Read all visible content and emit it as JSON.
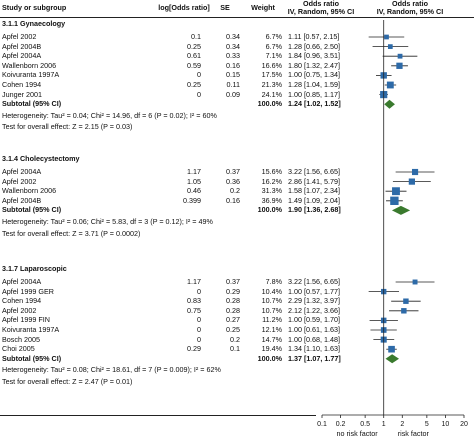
{
  "header": {
    "study": "Study or subgroup",
    "logor": "log[Odds ratio]",
    "se": "SE",
    "weight": "Weight",
    "or_title": "Odds ratio",
    "or_sub": "IV, Random, 95% CI",
    "or_title2": "Odds ratio",
    "or_sub2": "IV, Random, 95% CI"
  },
  "colors": {
    "square": "#2d6aa8",
    "diamond": "#3a7a2e",
    "line": "#222222"
  },
  "chart_data": {
    "type": "forest",
    "x_scale": "log",
    "xlim": [
      0.1,
      20
    ],
    "ticks": [
      "0.1",
      "0.2",
      "0.5",
      "1",
      "2",
      "5",
      "10",
      "20"
    ],
    "tick_values": [
      0.1,
      0.2,
      0.5,
      1,
      2,
      5,
      10,
      20
    ],
    "footer_left": "no risk factor",
    "footer_right": "risk factor",
    "groups": [
      {
        "title": "3.1.1 Gynaecology",
        "studies": [
          {
            "name": "Apfel 2002",
            "logor": "0.1",
            "se": "0.34",
            "weight": "6.7%",
            "ci_text": "1.11 [0.57, 2.15]",
            "or": 1.11,
            "lo": 0.57,
            "hi": 2.15,
            "w": 6.7
          },
          {
            "name": "Apfel 2004B",
            "logor": "0.25",
            "se": "0.34",
            "weight": "6.7%",
            "ci_text": "1.28 [0.66, 2.50]",
            "or": 1.28,
            "lo": 0.66,
            "hi": 2.5,
            "w": 6.7
          },
          {
            "name": "Apfel 2004A",
            "logor": "0.61",
            "se": "0.33",
            "weight": "7.1%",
            "ci_text": "1.84 [0.96, 3.51]",
            "or": 1.84,
            "lo": 0.96,
            "hi": 3.51,
            "w": 7.1
          },
          {
            "name": "Wallenborn 2006",
            "logor": "0.59",
            "se": "0.16",
            "weight": "16.6%",
            "ci_text": "1.80 [1.32, 2.47]",
            "or": 1.8,
            "lo": 1.32,
            "hi": 2.47,
            "w": 16.6
          },
          {
            "name": "Koivuranta 1997A",
            "logor": "0",
            "se": "0.15",
            "weight": "17.5%",
            "ci_text": "1.00 [0.75, 1.34]",
            "or": 1.0,
            "lo": 0.75,
            "hi": 1.34,
            "w": 17.5
          },
          {
            "name": "Cohen 1994",
            "logor": "0.25",
            "se": "0.11",
            "weight": "21.3%",
            "ci_text": "1.28 [1.04, 1.59]",
            "or": 1.28,
            "lo": 1.04,
            "hi": 1.59,
            "w": 21.3
          },
          {
            "name": "Junger 2001",
            "logor": "0",
            "se": "0.09",
            "weight": "24.1%",
            "ci_text": "1.00 [0.85, 1.17]",
            "or": 1.0,
            "lo": 0.85,
            "hi": 1.17,
            "w": 24.1
          }
        ],
        "subtotal": {
          "label": "Subtotal (95% CI)",
          "weight": "100.0%",
          "ci_text": "1.24 [1.02, 1.52]",
          "or": 1.24,
          "lo": 1.02,
          "hi": 1.52
        },
        "heterogeneity": "Heterogeneity: Tau² = 0.04; Chi² = 14.96, df = 6 (P = 0.02); I² = 60%",
        "overall": "Test for overall effect: Z = 2.15 (P = 0.03)"
      },
      {
        "title": "3.1.4 Cholecystectomy",
        "studies": [
          {
            "name": "Apfel 2004A",
            "logor": "1.17",
            "se": "0.37",
            "weight": "15.6%",
            "ci_text": "3.22 [1.56, 6.65]",
            "or": 3.22,
            "lo": 1.56,
            "hi": 6.65,
            "w": 15.6
          },
          {
            "name": "Apfel 2002",
            "logor": "1.05",
            "se": "0.36",
            "weight": "16.2%",
            "ci_text": "2.86 [1.41, 5.79]",
            "or": 2.86,
            "lo": 1.41,
            "hi": 5.79,
            "w": 16.2
          },
          {
            "name": "Wallenborn 2006",
            "logor": "0.46",
            "se": "0.2",
            "weight": "31.3%",
            "ci_text": "1.58 [1.07, 2.34]",
            "or": 1.58,
            "lo": 1.07,
            "hi": 2.34,
            "w": 31.3
          },
          {
            "name": "Apfel 2004B",
            "logor": "0.399",
            "se": "0.16",
            "weight": "36.9%",
            "ci_text": "1.49 [1.09, 2.04]",
            "or": 1.49,
            "lo": 1.09,
            "hi": 2.04,
            "w": 36.9
          }
        ],
        "subtotal": {
          "label": "Subtotal (95% CI)",
          "weight": "100.0%",
          "ci_text": "1.90 [1.36, 2.68]",
          "or": 1.9,
          "lo": 1.36,
          "hi": 2.68
        },
        "heterogeneity": "Heterogeneity: Tau² = 0.06; Chi² = 5.83, df = 3 (P = 0.12); I² = 49%",
        "overall": "Test for overall effect: Z = 3.71 (P = 0.0002)"
      },
      {
        "title": "3.1.7 Laparoscopic",
        "studies": [
          {
            "name": "Apfel 2004A",
            "logor": "1.17",
            "se": "0.37",
            "weight": "7.8%",
            "ci_text": "3.22 [1.56, 6.65]",
            "or": 3.22,
            "lo": 1.56,
            "hi": 6.65,
            "w": 7.8
          },
          {
            "name": "Apfel 1999 GER",
            "logor": "0",
            "se": "0.29",
            "weight": "10.4%",
            "ci_text": "1.00 [0.57, 1.77]",
            "or": 1.0,
            "lo": 0.57,
            "hi": 1.77,
            "w": 10.4
          },
          {
            "name": "Cohen 1994",
            "logor": "0.83",
            "se": "0.28",
            "weight": "10.7%",
            "ci_text": "2.29 [1.32, 3.97]",
            "or": 2.29,
            "lo": 1.32,
            "hi": 3.97,
            "w": 10.7
          },
          {
            "name": "Apfel 2002",
            "logor": "0.75",
            "se": "0.28",
            "weight": "10.7%",
            "ci_text": "2.12 [1.22, 3.66]",
            "or": 2.12,
            "lo": 1.22,
            "hi": 3.66,
            "w": 10.7
          },
          {
            "name": "Apfel 1999 FIN",
            "logor": "0",
            "se": "0.27",
            "weight": "11.2%",
            "ci_text": "1.00 [0.59, 1.70]",
            "or": 1.0,
            "lo": 0.59,
            "hi": 1.7,
            "w": 11.2
          },
          {
            "name": "Koivuranta 1997A",
            "logor": "0",
            "se": "0.25",
            "weight": "12.1%",
            "ci_text": "1.00 [0.61, 1.63]",
            "or": 1.0,
            "lo": 0.61,
            "hi": 1.63,
            "w": 12.1
          },
          {
            "name": "Bosch 2005",
            "logor": "0",
            "se": "0.2",
            "weight": "14.7%",
            "ci_text": "1.00 [0.68, 1.48]",
            "or": 1.0,
            "lo": 0.68,
            "hi": 1.48,
            "w": 14.7
          },
          {
            "name": "Choi 2005",
            "logor": "0.29",
            "se": "0.1",
            "weight": "19.4%",
            "ci_text": "1.34 [1.10, 1.63]",
            "or": 1.34,
            "lo": 1.1,
            "hi": 1.63,
            "w": 19.4
          }
        ],
        "subtotal": {
          "label": "Subtotal (95% CI)",
          "weight": "100.0%",
          "ci_text": "1.37 [1.07, 1.77]",
          "or": 1.37,
          "lo": 1.07,
          "hi": 1.77
        },
        "heterogeneity": "Heterogeneity: Tau² = 0.08; Chi² = 18.61, df = 7 (P = 0.009); I² = 62%",
        "overall": "Test for overall effect: Z = 2.47 (P = 0.01)"
      }
    ]
  }
}
